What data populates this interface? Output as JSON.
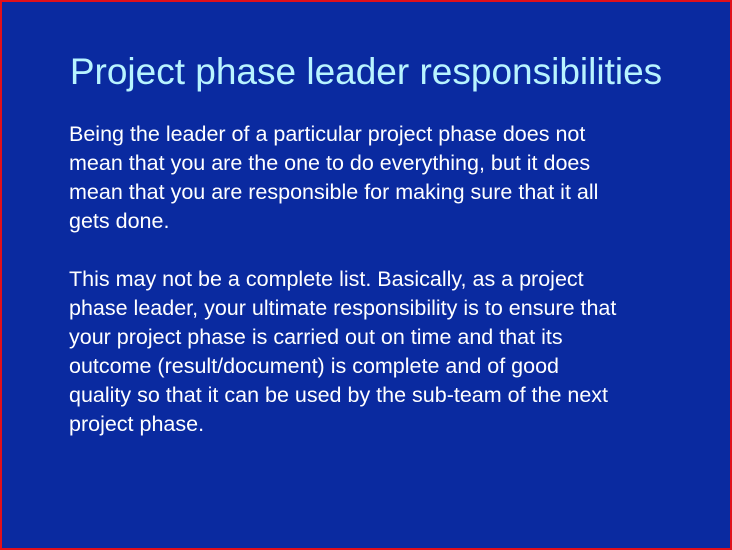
{
  "slide": {
    "background_color": "#0a2aa0",
    "border_color": "#e0101a",
    "title": "Project phase leader responsibilities",
    "title_color": "#b8f4ff",
    "text_color": "#ffffff",
    "paragraphs": [
      "Being the leader of a particular project phase does not\nmean that you are the one to do everything, but it does\nmean that you are responsible for making sure that it all\ngets done.",
      "This may not be a complete list. Basically, as a project\nphase leader, your ultimate responsibility is to ensure that\nyour project phase is carried out on time and that its\noutcome (result/document) is complete and of good\nquality so that it can be used by the sub-team of the next\nproject phase."
    ]
  }
}
